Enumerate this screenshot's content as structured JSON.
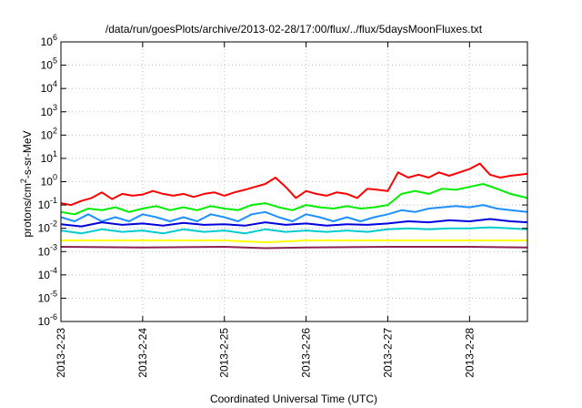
{
  "chart_data": {
    "type": "line",
    "title": "/data/run/goesPlots/archive/2013-02-28/17:00/flux/../flux/5daysMoonFluxes.txt",
    "xlabel": "Coordinated Universal Time (UTC)",
    "ylabel": {
      "before": "protons/cm",
      "sup": "2",
      "after": "-s-sr-MeV"
    },
    "y_scale": "log",
    "ylim": [
      1e-06,
      1000000.0
    ],
    "y_ticks": [
      {
        "value": 1e-06,
        "base": "10",
        "exp": "-6"
      },
      {
        "value": 1e-05,
        "base": "10",
        "exp": "-5"
      },
      {
        "value": 0.0001,
        "base": "10",
        "exp": "-4"
      },
      {
        "value": 0.001,
        "base": "10",
        "exp": "-3"
      },
      {
        "value": 0.01,
        "base": "10",
        "exp": "-2"
      },
      {
        "value": 0.1,
        "base": "10",
        "exp": "-1"
      },
      {
        "value": 1.0,
        "base": "10",
        "exp": "0"
      },
      {
        "value": 10.0,
        "base": "10",
        "exp": "1"
      },
      {
        "value": 100.0,
        "base": "10",
        "exp": "2"
      },
      {
        "value": 1000.0,
        "base": "10",
        "exp": "3"
      },
      {
        "value": 10000.0,
        "base": "10",
        "exp": "4"
      },
      {
        "value": 100000.0,
        "base": "10",
        "exp": "5"
      },
      {
        "value": 1000000.0,
        "base": "10",
        "exp": "6"
      }
    ],
    "xlim": [
      "2013-02-23T00:00",
      "2013-02-28T17:00"
    ],
    "x_ticks": [
      {
        "date": "2013-02-23T00:00",
        "label": "2013-2-23"
      },
      {
        "date": "2013-02-24T00:00",
        "label": "2013-2-24"
      },
      {
        "date": "2013-02-25T00:00",
        "label": "2013-2-25"
      },
      {
        "date": "2013-02-26T00:00",
        "label": "2013-2-26"
      },
      {
        "date": "2013-02-27T00:00",
        "label": "2013-2-27"
      },
      {
        "date": "2013-02-28T00:00",
        "label": "2013-2-28"
      }
    ],
    "grid": true,
    "legend": false,
    "series": [
      {
        "color": "#ff0000",
        "x": [
          "2013-02-23T00:00",
          "2013-02-23T03:00",
          "2013-02-23T06:00",
          "2013-02-23T09:00",
          "2013-02-23T12:00",
          "2013-02-23T15:00",
          "2013-02-23T18:00",
          "2013-02-23T21:00",
          "2013-02-24T00:00",
          "2013-02-24T03:00",
          "2013-02-24T06:00",
          "2013-02-24T09:00",
          "2013-02-24T12:00",
          "2013-02-24T15:00",
          "2013-02-24T18:00",
          "2013-02-24T21:00",
          "2013-02-25T00:00",
          "2013-02-25T03:00",
          "2013-02-25T06:00",
          "2013-02-25T09:00",
          "2013-02-25T12:00",
          "2013-02-25T15:00",
          "2013-02-25T18:00",
          "2013-02-25T21:00",
          "2013-02-26T00:00",
          "2013-02-26T03:00",
          "2013-02-26T06:00",
          "2013-02-26T09:00",
          "2013-02-26T12:00",
          "2013-02-26T15:00",
          "2013-02-26T18:00",
          "2013-02-26T21:00",
          "2013-02-27T00:00",
          "2013-02-27T03:00",
          "2013-02-27T06:00",
          "2013-02-27T09:00",
          "2013-02-27T12:00",
          "2013-02-27T15:00",
          "2013-02-27T18:00",
          "2013-02-27T21:00",
          "2013-02-28T00:00",
          "2013-02-28T03:00",
          "2013-02-28T06:00",
          "2013-02-28T09:00",
          "2013-02-28T12:00",
          "2013-02-28T15:00",
          "2013-02-28T17:00"
        ],
        "y": [
          0.12,
          0.1,
          0.15,
          0.2,
          0.35,
          0.18,
          0.3,
          0.25,
          0.28,
          0.4,
          0.3,
          0.25,
          0.3,
          0.22,
          0.3,
          0.35,
          0.25,
          0.35,
          0.45,
          0.6,
          0.8,
          1.5,
          0.6,
          0.2,
          0.4,
          0.3,
          0.25,
          0.35,
          0.3,
          0.2,
          0.5,
          0.45,
          0.4,
          2.5,
          1.5,
          2.0,
          1.5,
          2.5,
          1.8,
          2.5,
          3.5,
          6.0,
          2.0,
          1.5,
          1.8,
          2.0,
          2.2
        ]
      },
      {
        "color": "#00ee00",
        "x": [
          "2013-02-23T00:00",
          "2013-02-23T04:00",
          "2013-02-23T08:00",
          "2013-02-23T12:00",
          "2013-02-23T16:00",
          "2013-02-23T20:00",
          "2013-02-24T00:00",
          "2013-02-24T04:00",
          "2013-02-24T08:00",
          "2013-02-24T12:00",
          "2013-02-24T16:00",
          "2013-02-24T20:00",
          "2013-02-25T00:00",
          "2013-02-25T04:00",
          "2013-02-25T08:00",
          "2013-02-25T12:00",
          "2013-02-25T16:00",
          "2013-02-25T20:00",
          "2013-02-26T00:00",
          "2013-02-26T04:00",
          "2013-02-26T08:00",
          "2013-02-26T12:00",
          "2013-02-26T16:00",
          "2013-02-26T20:00",
          "2013-02-27T00:00",
          "2013-02-27T04:00",
          "2013-02-27T08:00",
          "2013-02-27T12:00",
          "2013-02-27T16:00",
          "2013-02-27T20:00",
          "2013-02-28T00:00",
          "2013-02-28T04:00",
          "2013-02-28T08:00",
          "2013-02-28T12:00",
          "2013-02-28T17:00"
        ],
        "y": [
          0.05,
          0.04,
          0.07,
          0.06,
          0.08,
          0.05,
          0.07,
          0.09,
          0.06,
          0.08,
          0.06,
          0.09,
          0.07,
          0.06,
          0.1,
          0.12,
          0.08,
          0.06,
          0.1,
          0.08,
          0.07,
          0.09,
          0.07,
          0.08,
          0.1,
          0.3,
          0.4,
          0.3,
          0.5,
          0.45,
          0.6,
          0.8,
          0.5,
          0.3,
          0.2
        ]
      },
      {
        "color": "#1e90ff",
        "x": [
          "2013-02-23T00:00",
          "2013-02-23T04:00",
          "2013-02-23T08:00",
          "2013-02-23T12:00",
          "2013-02-23T16:00",
          "2013-02-23T20:00",
          "2013-02-24T00:00",
          "2013-02-24T04:00",
          "2013-02-24T08:00",
          "2013-02-24T12:00",
          "2013-02-24T16:00",
          "2013-02-24T20:00",
          "2013-02-25T00:00",
          "2013-02-25T04:00",
          "2013-02-25T08:00",
          "2013-02-25T12:00",
          "2013-02-25T16:00",
          "2013-02-25T20:00",
          "2013-02-26T00:00",
          "2013-02-26T04:00",
          "2013-02-26T08:00",
          "2013-02-26T12:00",
          "2013-02-26T16:00",
          "2013-02-26T20:00",
          "2013-02-27T00:00",
          "2013-02-27T04:00",
          "2013-02-27T08:00",
          "2013-02-27T12:00",
          "2013-02-27T16:00",
          "2013-02-27T20:00",
          "2013-02-28T00:00",
          "2013-02-28T04:00",
          "2013-02-28T08:00",
          "2013-02-28T12:00",
          "2013-02-28T17:00"
        ],
        "y": [
          0.03,
          0.02,
          0.04,
          0.02,
          0.03,
          0.02,
          0.04,
          0.03,
          0.02,
          0.03,
          0.02,
          0.04,
          0.03,
          0.02,
          0.04,
          0.05,
          0.03,
          0.02,
          0.04,
          0.03,
          0.02,
          0.03,
          0.02,
          0.03,
          0.04,
          0.06,
          0.05,
          0.07,
          0.08,
          0.09,
          0.08,
          0.1,
          0.07,
          0.06,
          0.05
        ]
      },
      {
        "color": "#0000dd",
        "x": [
          "2013-02-23T00:00",
          "2013-02-23T06:00",
          "2013-02-23T12:00",
          "2013-02-23T18:00",
          "2013-02-24T00:00",
          "2013-02-24T06:00",
          "2013-02-24T12:00",
          "2013-02-24T18:00",
          "2013-02-25T00:00",
          "2013-02-25T06:00",
          "2013-02-25T12:00",
          "2013-02-25T18:00",
          "2013-02-26T00:00",
          "2013-02-26T06:00",
          "2013-02-26T12:00",
          "2013-02-26T18:00",
          "2013-02-27T00:00",
          "2013-02-27T06:00",
          "2013-02-27T12:00",
          "2013-02-27T18:00",
          "2013-02-28T00:00",
          "2013-02-28T06:00",
          "2013-02-28T12:00",
          "2013-02-28T17:00"
        ],
        "y": [
          0.015,
          0.012,
          0.018,
          0.014,
          0.016,
          0.013,
          0.017,
          0.014,
          0.015,
          0.013,
          0.018,
          0.014,
          0.016,
          0.013,
          0.015,
          0.014,
          0.016,
          0.02,
          0.018,
          0.022,
          0.02,
          0.025,
          0.02,
          0.018
        ]
      },
      {
        "color": "#00cccc",
        "x": [
          "2013-02-23T00:00",
          "2013-02-23T06:00",
          "2013-02-23T12:00",
          "2013-02-23T18:00",
          "2013-02-24T00:00",
          "2013-02-24T06:00",
          "2013-02-24T12:00",
          "2013-02-24T18:00",
          "2013-02-25T00:00",
          "2013-02-25T06:00",
          "2013-02-25T12:00",
          "2013-02-25T18:00",
          "2013-02-26T00:00",
          "2013-02-26T06:00",
          "2013-02-26T12:00",
          "2013-02-26T18:00",
          "2013-02-27T00:00",
          "2013-02-27T06:00",
          "2013-02-27T12:00",
          "2013-02-27T18:00",
          "2013-02-28T00:00",
          "2013-02-28T06:00",
          "2013-02-28T12:00",
          "2013-02-28T17:00"
        ],
        "y": [
          0.008,
          0.006,
          0.009,
          0.007,
          0.008,
          0.006,
          0.009,
          0.007,
          0.008,
          0.006,
          0.009,
          0.007,
          0.008,
          0.007,
          0.008,
          0.007,
          0.009,
          0.01,
          0.009,
          0.01,
          0.01,
          0.011,
          0.01,
          0.009
        ]
      },
      {
        "color": "#ffff00",
        "x": [
          "2013-02-23T00:00",
          "2013-02-24T00:00",
          "2013-02-25T00:00",
          "2013-02-25T12:00",
          "2013-02-26T00:00",
          "2013-02-27T00:00",
          "2013-02-28T00:00",
          "2013-02-28T17:00"
        ],
        "y": [
          0.003,
          0.003,
          0.003,
          0.0025,
          0.003,
          0.003,
          0.003,
          0.003
        ]
      },
      {
        "color": "#8b2252",
        "x": [
          "2013-02-23T00:00",
          "2013-02-24T00:00",
          "2013-02-25T00:00",
          "2013-02-25T12:00",
          "2013-02-26T00:00",
          "2013-02-27T00:00",
          "2013-02-28T00:00",
          "2013-02-28T17:00"
        ],
        "y": [
          0.0016,
          0.0015,
          0.0016,
          0.0014,
          0.0015,
          0.0016,
          0.0016,
          0.0015
        ]
      }
    ]
  }
}
